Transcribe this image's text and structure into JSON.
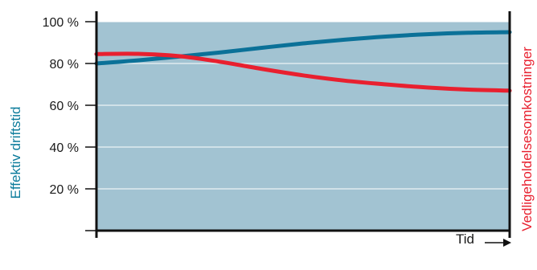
{
  "chart_data": {
    "type": "line",
    "ylabel": "Effektiv driftstid",
    "y2label": "Vedligeholdelsesomkostninger",
    "xlabel": "Tid",
    "ylim": [
      0,
      100
    ],
    "yticks": [
      "20 %",
      "40 %",
      "60 %",
      "80 %",
      "100 %"
    ],
    "ytick_values": [
      20,
      40,
      60,
      80,
      100
    ],
    "x": [
      0,
      10,
      20,
      30,
      40,
      50,
      60,
      70,
      80,
      90,
      100
    ],
    "series": [
      {
        "values": [
          80,
          81.5,
          83.3,
          85.3,
          87.5,
          89.6,
          91.4,
          92.9,
          94,
          94.7,
          95
        ],
        "color": "#0b7198"
      },
      {
        "values": [
          84.5,
          84.6,
          83.5,
          80.8,
          77.4,
          74.3,
          71.8,
          70,
          68.5,
          67.5,
          67
        ],
        "color": "#e8202f"
      }
    ],
    "grid": true,
    "plot_background": "#a2c3d2"
  }
}
